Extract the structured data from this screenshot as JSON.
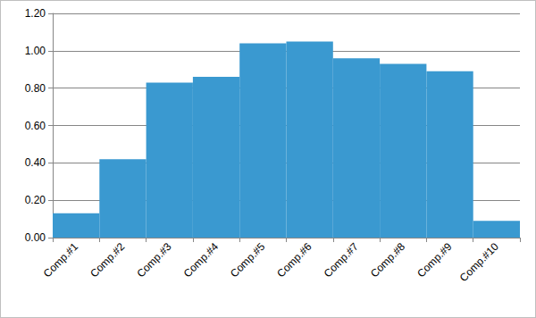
{
  "chart_data": {
    "type": "bar",
    "categories": [
      "Comp.#1",
      "Comp.#2",
      "Comp.#3",
      "Comp.#4",
      "Comp.#5",
      "Comp.#6",
      "Comp.#7",
      "Comp.#8",
      "Comp.#9",
      "Comp.#10"
    ],
    "values": [
      0.13,
      0.42,
      0.83,
      0.86,
      1.04,
      1.05,
      0.96,
      0.93,
      0.89,
      0.09
    ],
    "color": "#3a99d0",
    "ylim": [
      0,
      1.2
    ],
    "yticks": [
      {
        "value": 0,
        "label": "0.00"
      },
      {
        "value": 0.2,
        "label": "0.20"
      },
      {
        "value": 0.4,
        "label": "0.40"
      },
      {
        "value": 0.6,
        "label": "0.60"
      },
      {
        "value": 0.8,
        "label": "0.80"
      },
      {
        "value": 1.0,
        "label": "1.00"
      },
      {
        "value": 1.2,
        "label": "1.20"
      }
    ],
    "grid": true
  }
}
